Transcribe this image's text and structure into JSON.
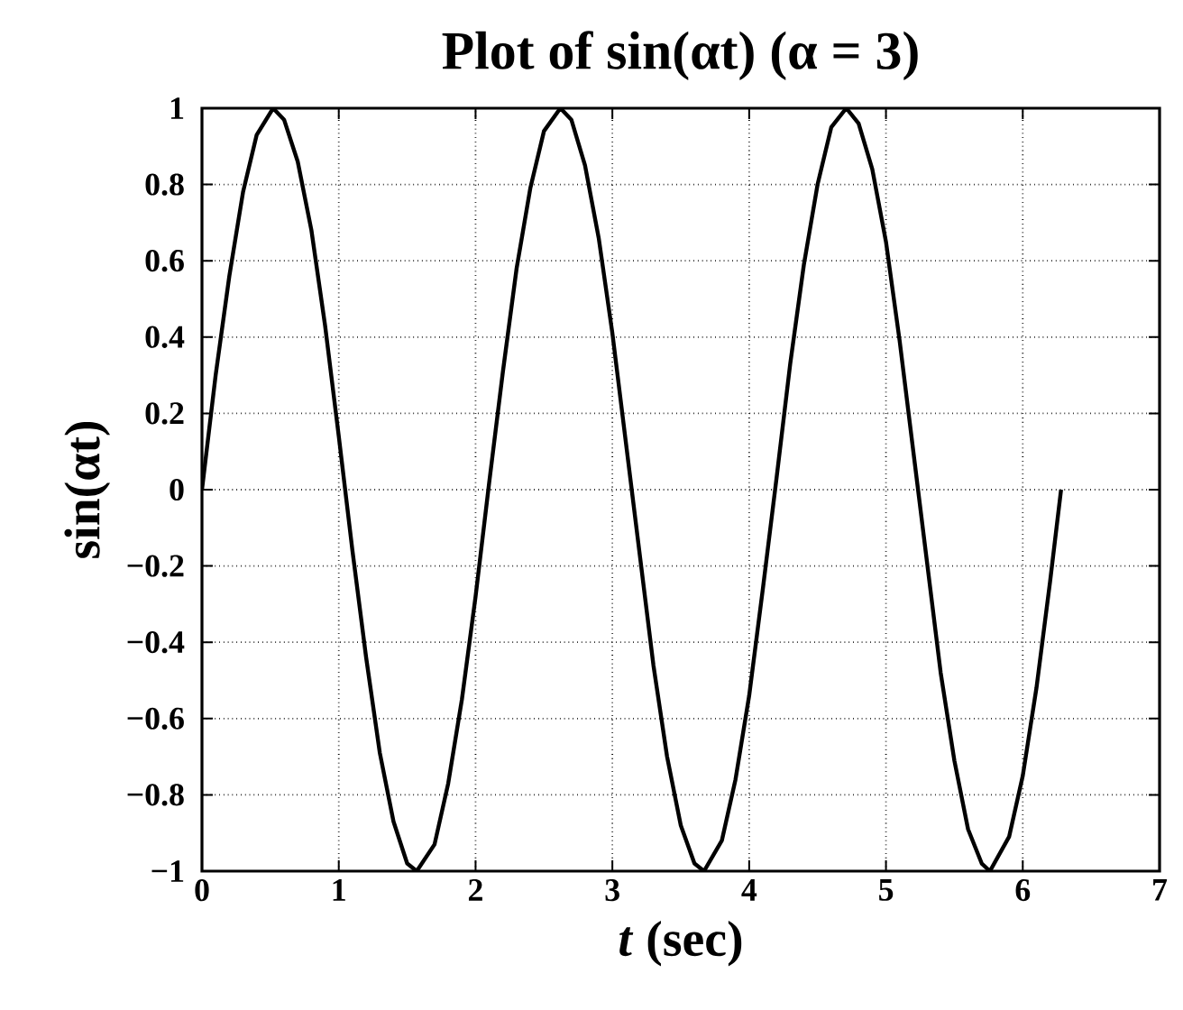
{
  "chart_data": {
    "type": "line",
    "title": "Plot of sin(αt)  (α = 3)",
    "xlabel": "*t* (sec)",
    "ylabel": "sin(αt)",
    "x": [
      0,
      0.1,
      0.2,
      0.3,
      0.4,
      0.52,
      0.6,
      0.7,
      0.8,
      0.9,
      1.0,
      1.1,
      1.2,
      1.3,
      1.4,
      1.5,
      1.57,
      1.7,
      1.8,
      1.9,
      2.0,
      2.1,
      2.2,
      2.3,
      2.4,
      2.5,
      2.62,
      2.7,
      2.8,
      2.9,
      3.0,
      3.1,
      3.2,
      3.3,
      3.4,
      3.5,
      3.6,
      3.67,
      3.8,
      3.9,
      4.0,
      4.1,
      4.2,
      4.3,
      4.4,
      4.5,
      4.6,
      4.71,
      4.8,
      4.9,
      5.0,
      5.1,
      5.2,
      5.3,
      5.4,
      5.5,
      5.6,
      5.7,
      5.76,
      5.9,
      6.0,
      6.1,
      6.2,
      6.28
    ],
    "series": [
      {
        "color": "#000000",
        "values": [
          0,
          0.3,
          0.56,
          0.78,
          0.93,
          1.0,
          0.97,
          0.86,
          0.68,
          0.43,
          0.14,
          -0.16,
          -0.44,
          -0.69,
          -0.87,
          -0.98,
          -1.0,
          -0.93,
          -0.77,
          -0.55,
          -0.28,
          0.02,
          0.31,
          0.58,
          0.79,
          0.94,
          1.0,
          0.97,
          0.85,
          0.66,
          0.41,
          0.12,
          -0.17,
          -0.46,
          -0.7,
          -0.88,
          -0.98,
          -1.0,
          -0.92,
          -0.76,
          -0.54,
          -0.26,
          0.03,
          0.33,
          0.59,
          0.8,
          0.95,
          1.0,
          0.96,
          0.84,
          0.65,
          0.39,
          0.1,
          -0.19,
          -0.48,
          -0.71,
          -0.89,
          -0.98,
          -1.0,
          -0.91,
          -0.75,
          -0.52,
          -0.24,
          0
        ]
      }
    ],
    "xlim": [
      0,
      7
    ],
    "ylim": [
      -1,
      1
    ],
    "xticks": [
      0,
      1,
      2,
      3,
      4,
      5,
      6,
      7
    ],
    "yticks": [
      {
        "value": -1,
        "label": "−1"
      },
      {
        "value": -0.8,
        "label": "−0.8"
      },
      {
        "value": -0.6,
        "label": "−0.6"
      },
      {
        "value": -0.4,
        "label": "−0.4"
      },
      {
        "value": -0.2,
        "label": "−0.2"
      },
      0,
      0.2,
      0.4,
      0.6,
      0.8,
      1
    ],
    "grid": true,
    "line_style": "solid"
  }
}
